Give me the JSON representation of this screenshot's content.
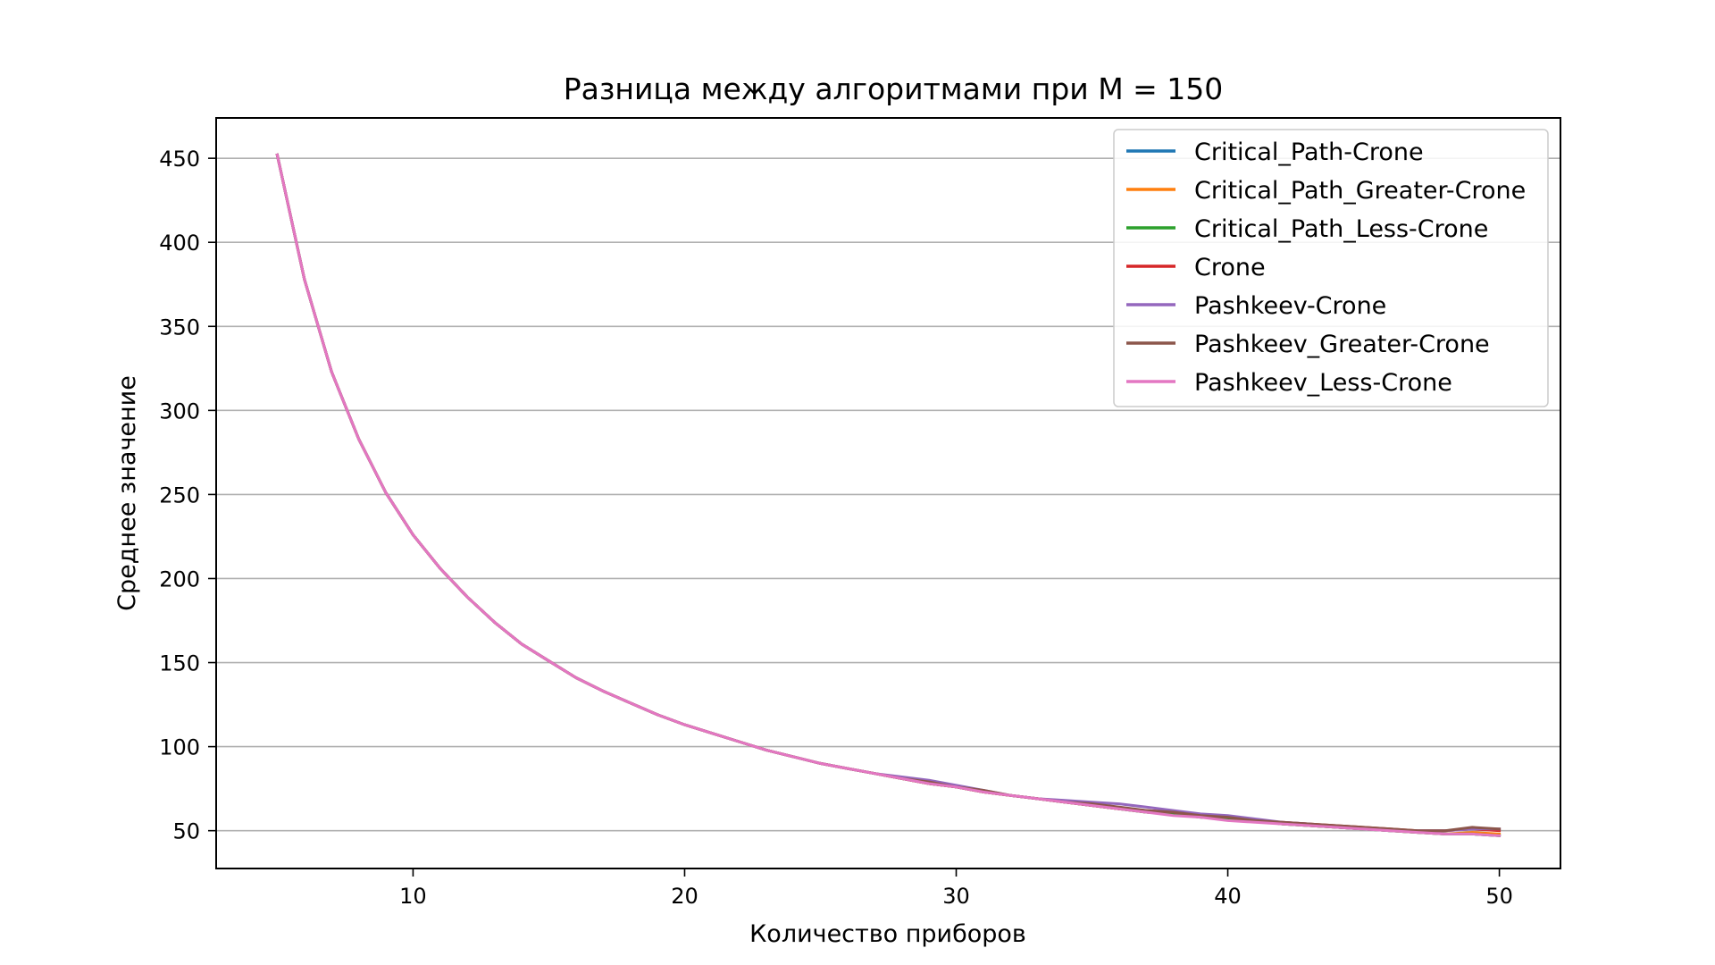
{
  "chart_data": {
    "type": "line",
    "title": "Разница между алгоритмами при M = 150",
    "xlabel": "Количество приборов",
    "ylabel": "Среднее значение",
    "xlim": [
      2.75,
      52.25
    ],
    "ylim": [
      27.5,
      474
    ],
    "xticks": [
      10,
      20,
      30,
      40,
      50
    ],
    "yticks": [
      50,
      100,
      150,
      200,
      250,
      300,
      350,
      400,
      450
    ],
    "grid": "horizontal",
    "legend_position": "upper right",
    "x": [
      5,
      6,
      7,
      8,
      9,
      10,
      11,
      12,
      13,
      14,
      15,
      16,
      17,
      18,
      19,
      20,
      21,
      22,
      23,
      24,
      25,
      26,
      27,
      28,
      29,
      30,
      31,
      32,
      33,
      34,
      35,
      36,
      37,
      38,
      39,
      40,
      41,
      42,
      43,
      44,
      45,
      46,
      47,
      48,
      49,
      50
    ],
    "series": [
      {
        "name": "Critical_Path-Crone",
        "color": "#1f77b4",
        "values": [
          452,
          378,
          323,
          283,
          251,
          226,
          206,
          189,
          174,
          161,
          151,
          141,
          133,
          126,
          119,
          113,
          108,
          103,
          98,
          94,
          90,
          87,
          84,
          81,
          78,
          76,
          73,
          71,
          69,
          67,
          65,
          63,
          61,
          60,
          58,
          57,
          56,
          54,
          53,
          52,
          51,
          50,
          49,
          48,
          48,
          47
        ]
      },
      {
        "name": "Critical_Path_Greater-Crone",
        "color": "#ff7f0e",
        "values": [
          452,
          378,
          323,
          283,
          251,
          226,
          206,
          189,
          174,
          161,
          151,
          141,
          133,
          126,
          119,
          113,
          108,
          103,
          98,
          94,
          90,
          87,
          84,
          81,
          78,
          76,
          73,
          71,
          69,
          67,
          65,
          63,
          61,
          60,
          58,
          57,
          56,
          54,
          53,
          52,
          51,
          50,
          49,
          48,
          49,
          48
        ]
      },
      {
        "name": "Critical_Path_Less-Crone",
        "color": "#2ca02c",
        "values": [
          452,
          378,
          323,
          283,
          251,
          226,
          206,
          189,
          174,
          161,
          151,
          141,
          133,
          126,
          119,
          113,
          108,
          103,
          98,
          94,
          90,
          87,
          84,
          81,
          78,
          76,
          73,
          71,
          69,
          67,
          65,
          63,
          61,
          60,
          58,
          57,
          56,
          54,
          53,
          52,
          51,
          50,
          49,
          48,
          48,
          47
        ]
      },
      {
        "name": "Crone",
        "color": "#d62728",
        "values": [
          452,
          378,
          323,
          283,
          251,
          226,
          206,
          189,
          174,
          161,
          151,
          141,
          133,
          126,
          119,
          113,
          108,
          103,
          98,
          94,
          90,
          87,
          84,
          81,
          78,
          76,
          73,
          71,
          69,
          67,
          65,
          63,
          62,
          61,
          59,
          58,
          56,
          55,
          54,
          53,
          52,
          51,
          50,
          50,
          51,
          50
        ]
      },
      {
        "name": "Pashkeev-Crone",
        "color": "#9467bd",
        "values": [
          452,
          378,
          323,
          283,
          251,
          226,
          206,
          189,
          174,
          161,
          151,
          141,
          133,
          126,
          119,
          113,
          108,
          103,
          98,
          94,
          90,
          87,
          84,
          82,
          80,
          77,
          74,
          71,
          69,
          68,
          67,
          66,
          64,
          62,
          60,
          59,
          57,
          55,
          54,
          52,
          51,
          50,
          50,
          50,
          51,
          51
        ]
      },
      {
        "name": "Pashkeev_Greater-Crone",
        "color": "#8c564b",
        "values": [
          452,
          378,
          323,
          283,
          251,
          226,
          206,
          189,
          174,
          161,
          151,
          141,
          133,
          126,
          119,
          113,
          108,
          103,
          98,
          94,
          90,
          87,
          84,
          81,
          79,
          76,
          74,
          71,
          69,
          67,
          66,
          64,
          62,
          61,
          59,
          58,
          56,
          55,
          54,
          53,
          52,
          51,
          50,
          50,
          52,
          51
        ]
      },
      {
        "name": "Pashkeev_Less-Crone",
        "color": "#e377c2",
        "values": [
          452,
          378,
          323,
          283,
          251,
          226,
          206,
          189,
          174,
          161,
          151,
          141,
          133,
          126,
          119,
          113,
          108,
          103,
          98,
          94,
          90,
          87,
          84,
          81,
          78,
          76,
          73,
          71,
          69,
          67,
          65,
          63,
          61,
          59,
          58,
          56,
          55,
          54,
          53,
          52,
          51,
          50,
          49,
          48,
          48,
          47
        ]
      }
    ]
  }
}
